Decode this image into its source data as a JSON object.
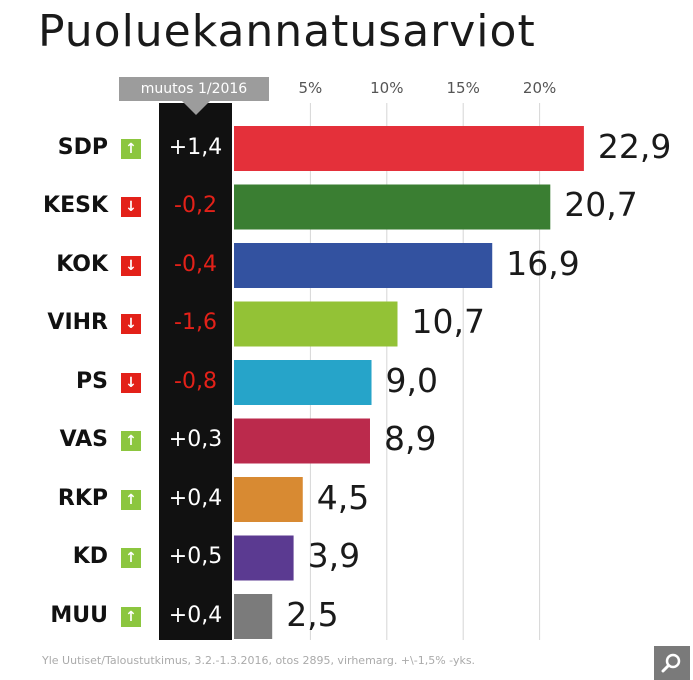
{
  "title": "Puoluekannatusarviot",
  "change_header": "muutos 1/2016",
  "source": "Yle Uutiset/Taloustutkimus, 3.2.-1.3.2016, otos 2895, virhemarg. +\\-1,5% -yks.",
  "icons": {
    "up": "arrow-up-icon",
    "down": "arrow-down-icon",
    "zoom": "magnifier-icon"
  },
  "colors": {
    "SDP": "#e4303a",
    "KESK": "#3a7e32",
    "KOK": "#3352a0",
    "VIHR": "#93c236",
    "PS": "#26a4c9",
    "VAS": "#bb2a4c",
    "RKP": "#d88a32",
    "KD": "#5b3a91",
    "MUU": "#7b7b7b"
  },
  "chart_data": {
    "type": "bar",
    "orientation": "horizontal",
    "title": "Puoluekannatusarviot",
    "categories": [
      "SDP",
      "KESK",
      "KOK",
      "VIHR",
      "PS",
      "VAS",
      "RKP",
      "KD",
      "MUU"
    ],
    "values": [
      22.9,
      20.7,
      16.9,
      10.7,
      9.0,
      8.9,
      4.5,
      3.9,
      2.5
    ],
    "value_labels": [
      "22,9",
      "20,7",
      "16,9",
      "10,7",
      "9,0",
      "8,9",
      "4,5",
      "3,9",
      "2,5"
    ],
    "change_labels": [
      "+1,4",
      "-0,2",
      "-0,4",
      "-1,6",
      "-0,8",
      "+0,3",
      "+0,4",
      "+0,5",
      "+0,4"
    ],
    "change_direction": [
      "up",
      "down",
      "down",
      "down",
      "down",
      "up",
      "up",
      "up",
      "up"
    ],
    "ticks": [
      5,
      10,
      15,
      20
    ],
    "tick_labels": [
      "5%",
      "10%",
      "15%",
      "20%"
    ],
    "xlim": [
      0,
      23
    ],
    "grid": true,
    "legend": "none"
  }
}
